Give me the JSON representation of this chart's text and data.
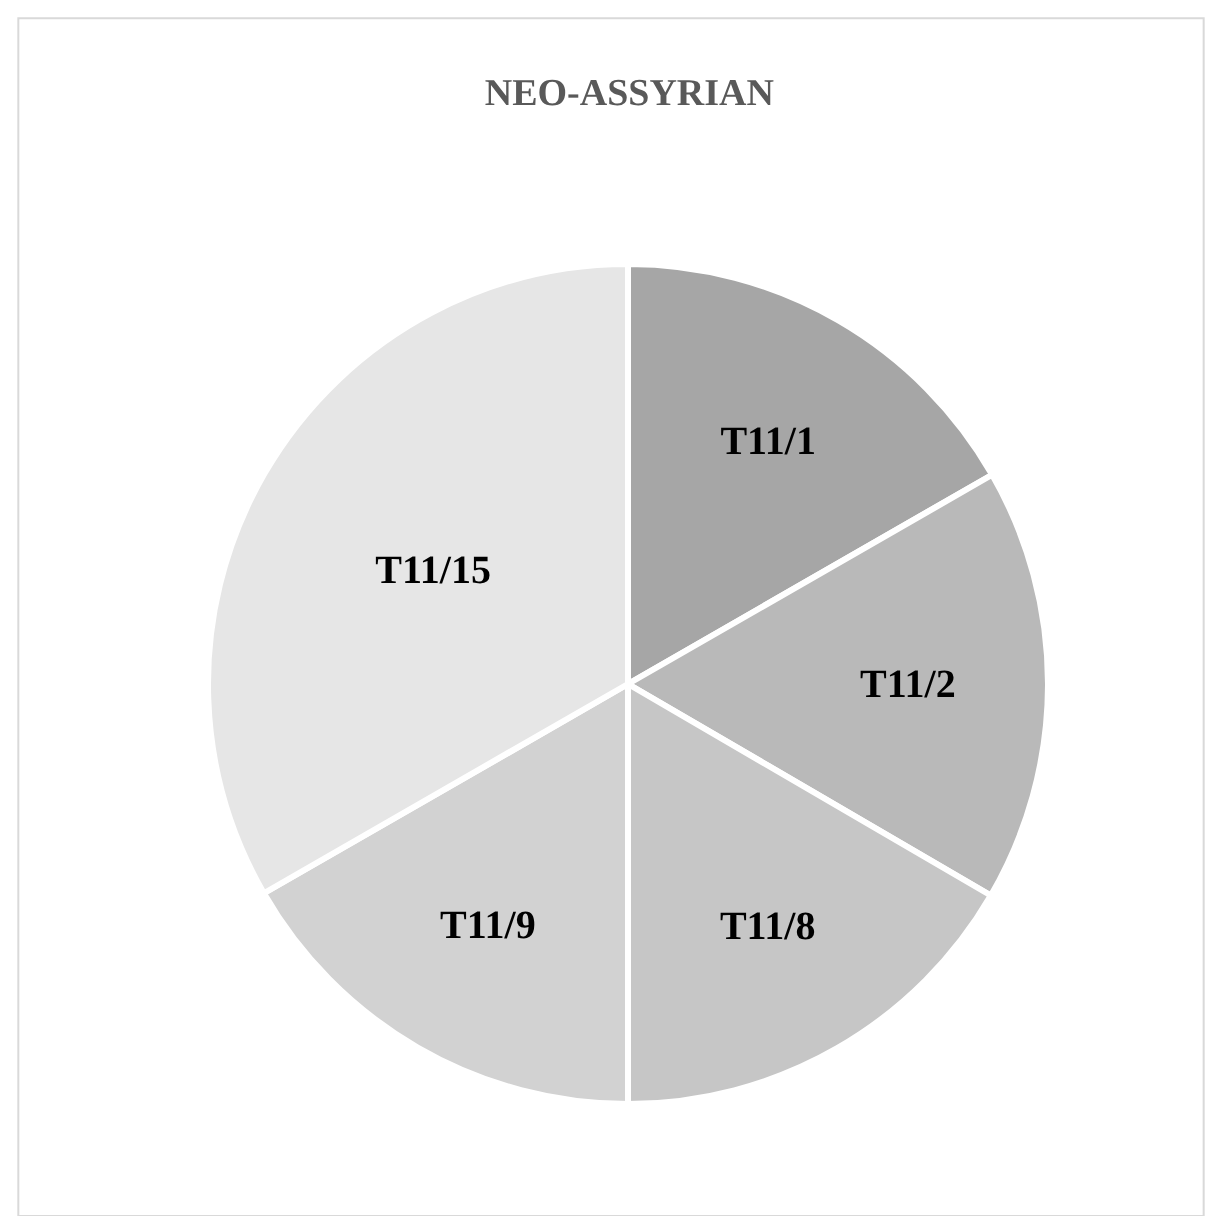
{
  "chart_data": {
    "type": "pie",
    "title": "NEO-ASSYRIAN",
    "categories": [
      "T11/1",
      "T11/2",
      "T11/8",
      "T11/9",
      "T11/15"
    ],
    "values": [
      16.7,
      16.7,
      16.6,
      16.7,
      33.3
    ],
    "colors": [
      "#a6a6a6",
      "#b9b9b9",
      "#c6c6c6",
      "#d2d2d2",
      "#e6e6e6"
    ],
    "legend": false
  }
}
